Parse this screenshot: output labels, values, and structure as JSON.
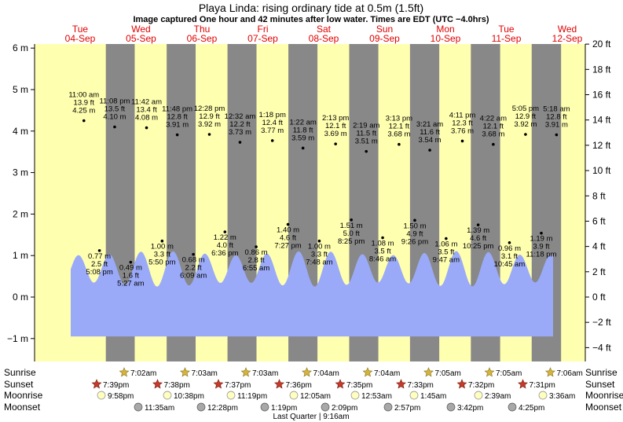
{
  "title": "Playa Linda: rising  ordinary tide at 0.5m (1.5ft)",
  "subtitle": "Image captured One hour and 42 minutes after low water. Times are EDT (UTC −4.0hrs)",
  "colors": {
    "day_bg": "#ffffb0",
    "night_bg": "#888888",
    "water": "#9aaaf8",
    "date_text": "#e00000",
    "sunrise_star": "#d4b43a",
    "sunset_star": "#c83a28",
    "moon_rise": "#ffffc0",
    "moon_set": "#a8a8a8"
  },
  "days": [
    {
      "day": "Tue",
      "date": "04-Sep"
    },
    {
      "day": "Wed",
      "date": "05-Sep"
    },
    {
      "day": "Thu",
      "date": "06-Sep"
    },
    {
      "day": "Fri",
      "date": "07-Sep"
    },
    {
      "day": "Sat",
      "date": "08-Sep"
    },
    {
      "day": "Sun",
      "date": "09-Sep"
    },
    {
      "day": "Mon",
      "date": "10-Sep"
    },
    {
      "day": "Tue",
      "date": "11-Sep"
    },
    {
      "day": "Wed",
      "date": "12-Sep"
    }
  ],
  "chart_data": {
    "type": "area",
    "y_left_label_unit": "m",
    "y_right_label_unit": "ft",
    "y_left_ticks": [
      "6 m",
      "5 m",
      "4 m",
      "3 m",
      "2 m",
      "1 m",
      "0 m",
      "−1 m"
    ],
    "y_right_ticks": [
      "20 ft",
      "18 ft",
      "16 ft",
      "14 ft",
      "12 ft",
      "10 ft",
      "8 ft",
      "6 ft",
      "4 ft",
      "2 ft",
      "0 ft",
      "−2 ft",
      "−4 ft"
    ],
    "ylim_m": [
      -1.3,
      6.2
    ],
    "high_tides": [
      {
        "time": "11:00 am",
        "ft": "13.9 ft",
        "m": "4.25 m"
      },
      {
        "time": "11:08 pm",
        "ft": "13.5 ft",
        "m": "4.10 m"
      },
      {
        "time": "11:42 am",
        "ft": "13.4 ft",
        "m": "4.08 m"
      },
      {
        "time": "11:48 pm",
        "ft": "12.8 ft",
        "m": "3.91 m"
      },
      {
        "time": "12:28 pm",
        "ft": "12.9 ft",
        "m": "3.92 m"
      },
      {
        "time": "12:32 am",
        "ft": "12.2 ft",
        "m": "3.73 m"
      },
      {
        "time": "1:18 pm",
        "ft": "12.4 ft",
        "m": "3.77 m"
      },
      {
        "time": "1:22 am",
        "ft": "11.8 ft",
        "m": "3.59 m"
      },
      {
        "time": "2:13 pm",
        "ft": "12.1 ft",
        "m": "3.69 m"
      },
      {
        "time": "2:19 am",
        "ft": "11.5 ft",
        "m": "3.51 m"
      },
      {
        "time": "3:13 pm",
        "ft": "12.1 ft",
        "m": "3.68 m"
      },
      {
        "time": "3:21 am",
        "ft": "11.6 ft",
        "m": "3.54 m"
      },
      {
        "time": "4:11 pm",
        "ft": "12.3 ft",
        "m": "3.76 m"
      },
      {
        "time": "4:22 am",
        "ft": "12.1 ft",
        "m": "3.68 m"
      },
      {
        "time": "5:05 pm",
        "ft": "12.9 ft",
        "m": "3.92 m"
      },
      {
        "time": "5:18 am",
        "ft": "12.8 ft",
        "m": "3.91 m"
      }
    ],
    "low_tides": [
      {
        "time": "5:08 pm",
        "ft": "2.5 ft",
        "m": "0.77 m"
      },
      {
        "time": "5:27 am",
        "ft": "1.6 ft",
        "m": "0.49 m"
      },
      {
        "time": "5:50 pm",
        "ft": "3.3 ft",
        "m": "1.00 m"
      },
      {
        "time": "6:09 am",
        "ft": "2.2 ft",
        "m": "0.68 m"
      },
      {
        "time": "6:36 pm",
        "ft": "4.0 ft",
        "m": "1.22 m"
      },
      {
        "time": "6:55 am",
        "ft": "2.8 ft",
        "m": "0.86 m"
      },
      {
        "time": "7:27 pm",
        "ft": "4.6 ft",
        "m": "1.40 m"
      },
      {
        "time": "7:48 am",
        "ft": "3.3 ft",
        "m": "1.00 m"
      },
      {
        "time": "8:25 pm",
        "ft": "5.0 ft",
        "m": "1.51 m"
      },
      {
        "time": "8:46 am",
        "ft": "3.5 ft",
        "m": "1.08 m"
      },
      {
        "time": "9:26 pm",
        "ft": "4.9 ft",
        "m": "1.50 m"
      },
      {
        "time": "9:47 am",
        "ft": "3.5 ft",
        "m": "1.06 m"
      },
      {
        "time": "10:25 pm",
        "ft": "4.6 ft",
        "m": "1.39 m"
      },
      {
        "time": "10:45 am",
        "ft": "3.1 ft",
        "m": "0.96 m"
      },
      {
        "time": "11:18 pm",
        "ft": "3.9 ft",
        "m": "1.19 m"
      }
    ]
  },
  "sun_moon": {
    "labels": {
      "sunrise": "Sunrise",
      "sunset": "Sunset",
      "moonrise": "Moonrise",
      "moonset": "Moonset"
    },
    "sunrise": [
      "7:02am",
      "7:03am",
      "7:03am",
      "7:04am",
      "7:04am",
      "7:05am",
      "7:05am",
      "7:06am"
    ],
    "sunset": [
      "7:39pm",
      "7:38pm",
      "7:37pm",
      "7:36pm",
      "7:35pm",
      "7:33pm",
      "7:32pm",
      "7:31pm"
    ],
    "moonrise": [
      "9:58pm",
      "10:38pm",
      "11:19pm",
      "12:05am",
      "12:53am",
      "1:45am",
      "2:39am",
      "3:36am"
    ],
    "moonset": [
      "11:35am",
      "12:28pm",
      "1:19pm",
      "2:09pm",
      "2:57pm",
      "3:42pm",
      "4:25pm"
    ],
    "moon_phase": "Last Quarter | 9:16am"
  }
}
